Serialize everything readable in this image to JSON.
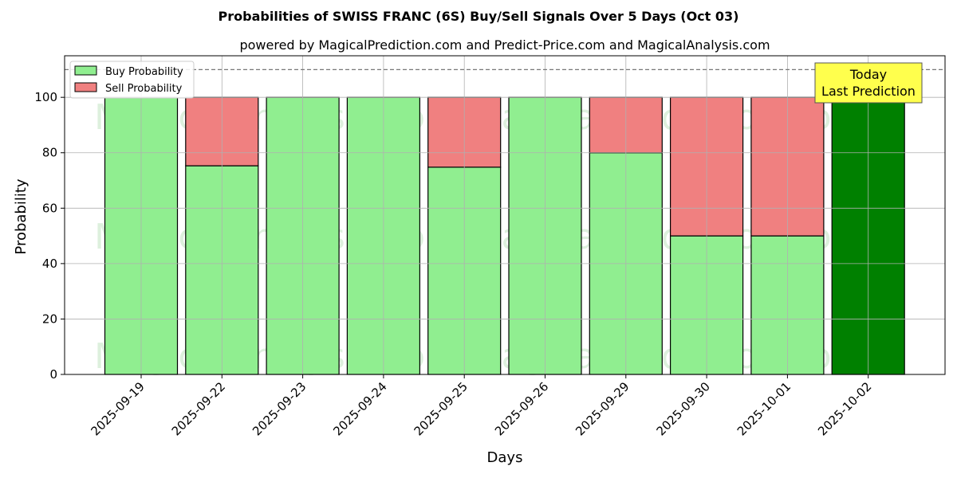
{
  "chart_data": {
    "type": "bar",
    "stacked": true,
    "title": "Probabilities of SWISS FRANC (6S) Buy/Sell Signals Over 5 Days (Oct 03)",
    "subtitle": "powered by MagicalPrediction.com and Predict-Price.com and MagicalAnalysis.com",
    "xlabel": "Days",
    "ylabel": "Probability",
    "ylim": [
      0,
      115
    ],
    "yticks": [
      0,
      20,
      40,
      60,
      80,
      100
    ],
    "grid": true,
    "legend_position": "top-left",
    "categories": [
      "2025-09-19",
      "2025-09-22",
      "2025-09-23",
      "2025-09-24",
      "2025-09-25",
      "2025-09-26",
      "2025-09-29",
      "2025-09-30",
      "2025-10-01",
      "2025-10-02"
    ],
    "series": [
      {
        "name": "Buy Probability",
        "color": "#90ee90",
        "values": [
          100,
          75.3,
          100,
          100,
          74.8,
          100,
          80,
          50,
          50,
          100
        ]
      },
      {
        "name": "Sell Probability",
        "color": "#f08080",
        "values": [
          0,
          24.7,
          0,
          0,
          25.2,
          0,
          20,
          50,
          50,
          0
        ]
      }
    ],
    "highlight": {
      "index": 9,
      "color": "#008000"
    },
    "reference_line": {
      "y": 110,
      "style": "dashed"
    },
    "annotation": {
      "lines": [
        "Today",
        "Last Prediction"
      ],
      "background": "#ffff4d"
    },
    "watermarks": [
      "MagicalAnalysis.com",
      "MagicalPrediction.com"
    ]
  }
}
